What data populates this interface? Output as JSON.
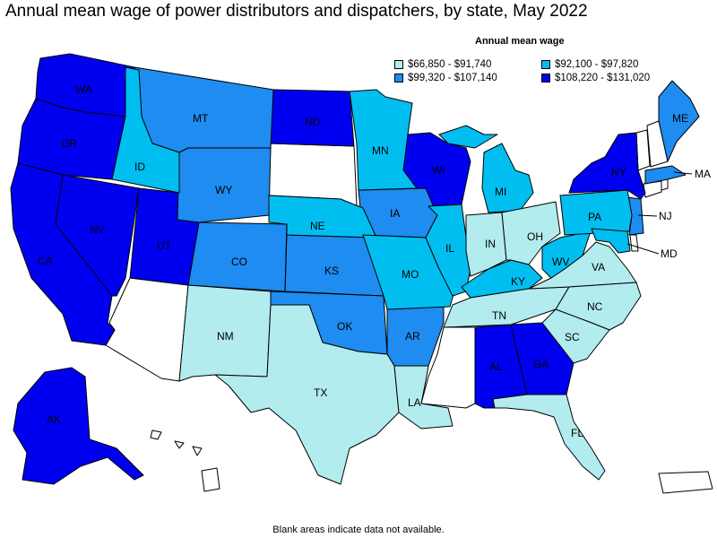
{
  "title": "Annual mean wage of power distributors and dispatchers, by state, May 2022",
  "legend": {
    "title": "Annual mean wage",
    "items": [
      {
        "label": "$66,850 - $91,740",
        "color": "#b2ecee"
      },
      {
        "label": "$92,100 - $97,820",
        "color": "#00bff0"
      },
      {
        "label": "$99,320 - $107,140",
        "color": "#1e8cf0"
      },
      {
        "label": "$108,220 - $131,020",
        "color": "#0000f0"
      }
    ]
  },
  "footnote": "Blank areas indicate data not available.",
  "colors": {
    "tier1": "#b2ecee",
    "tier2": "#00bff0",
    "tier3": "#1e8cf0",
    "tier4": "#0000f0",
    "nodata": "#ffffff"
  },
  "states": [
    {
      "abbr": "WA",
      "tier": 4
    },
    {
      "abbr": "OR",
      "tier": 4
    },
    {
      "abbr": "CA",
      "tier": 4
    },
    {
      "abbr": "NV",
      "tier": 4
    },
    {
      "abbr": "ID",
      "tier": 2
    },
    {
      "abbr": "MT",
      "tier": 3
    },
    {
      "abbr": "WY",
      "tier": 3
    },
    {
      "abbr": "UT",
      "tier": 4
    },
    {
      "abbr": "CO",
      "tier": 3
    },
    {
      "abbr": "NM",
      "tier": 1
    },
    {
      "abbr": "ND",
      "tier": 4
    },
    {
      "abbr": "NE",
      "tier": 2
    },
    {
      "abbr": "KS",
      "tier": 3
    },
    {
      "abbr": "OK",
      "tier": 3
    },
    {
      "abbr": "TX",
      "tier": 1
    },
    {
      "abbr": "MN",
      "tier": 2
    },
    {
      "abbr": "IA",
      "tier": 3
    },
    {
      "abbr": "MO",
      "tier": 2
    },
    {
      "abbr": "AR",
      "tier": 3
    },
    {
      "abbr": "LA",
      "tier": 1
    },
    {
      "abbr": "WI",
      "tier": 4
    },
    {
      "abbr": "IL",
      "tier": 2
    },
    {
      "abbr": "MI",
      "tier": 2
    },
    {
      "abbr": "IN",
      "tier": 1
    },
    {
      "abbr": "OH",
      "tier": 1
    },
    {
      "abbr": "KY",
      "tier": 2
    },
    {
      "abbr": "TN",
      "tier": 1
    },
    {
      "abbr": "AL",
      "tier": 4
    },
    {
      "abbr": "GA",
      "tier": 4
    },
    {
      "abbr": "FL",
      "tier": 1
    },
    {
      "abbr": "SC",
      "tier": 1
    },
    {
      "abbr": "NC",
      "tier": 1
    },
    {
      "abbr": "VA",
      "tier": 1
    },
    {
      "abbr": "WV",
      "tier": 2
    },
    {
      "abbr": "PA",
      "tier": 2
    },
    {
      "abbr": "NY",
      "tier": 4
    },
    {
      "abbr": "ME",
      "tier": 3
    },
    {
      "abbr": "MA",
      "tier": 3
    },
    {
      "abbr": "NJ",
      "tier": 3
    },
    {
      "abbr": "MD",
      "tier": 2
    },
    {
      "abbr": "AK",
      "tier": 4
    }
  ]
}
